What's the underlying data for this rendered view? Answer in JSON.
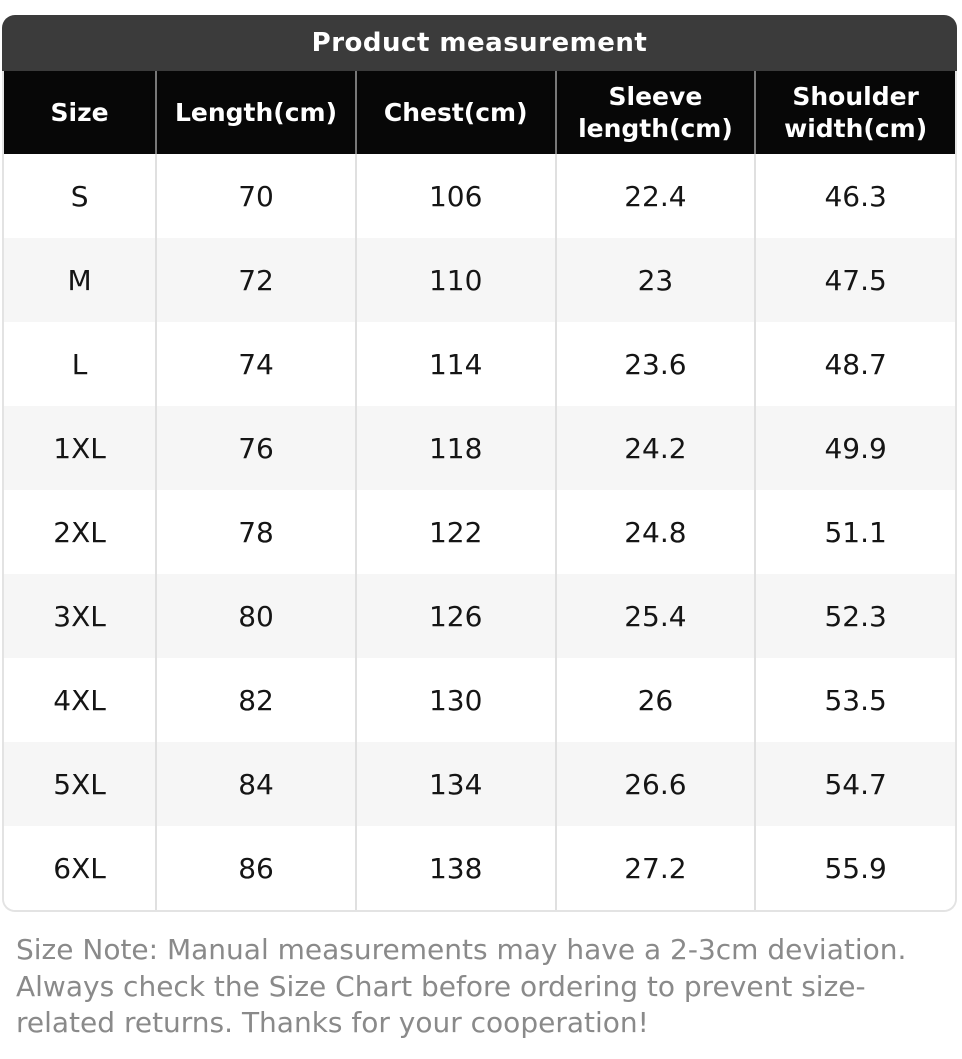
{
  "title": "Product measurement",
  "chart_data": {
    "type": "table",
    "title": "Product measurement",
    "columns": [
      "Size",
      "Length(cm)",
      "Chest(cm)",
      "Sleeve length(cm)",
      "Shoulder width(cm)"
    ],
    "rows": [
      [
        "S",
        70,
        106,
        22.4,
        46.3
      ],
      [
        "M",
        72,
        110,
        23,
        47.5
      ],
      [
        "L",
        74,
        114,
        23.6,
        48.7
      ],
      [
        "1XL",
        76,
        118,
        24.2,
        49.9
      ],
      [
        "2XL",
        78,
        122,
        24.8,
        51.1
      ],
      [
        "3XL",
        80,
        126,
        25.4,
        52.3
      ],
      [
        "4XL",
        82,
        130,
        26,
        53.5
      ],
      [
        "5XL",
        84,
        134,
        26.6,
        54.7
      ],
      [
        "6XL",
        86,
        138,
        27.2,
        55.9
      ]
    ],
    "unit": "cm"
  },
  "note": "Size Note: Manual measurements may have a 2-3cm deviation. Always check the Size Chart before ordering to prevent size-related returns. Thanks for your cooperation!",
  "colors": {
    "title_bar_bg": "#3b3b3b",
    "header_bg": "#070707",
    "header_text": "#ffffff",
    "row_bg": "#ffffff",
    "row_alt_bg": "#f6f6f6",
    "body_text": "#151515",
    "note_text": "#8a8a8a",
    "header_divider": "#787878",
    "body_divider": "#e0e0e0",
    "table_border": "#e3e3e3"
  }
}
